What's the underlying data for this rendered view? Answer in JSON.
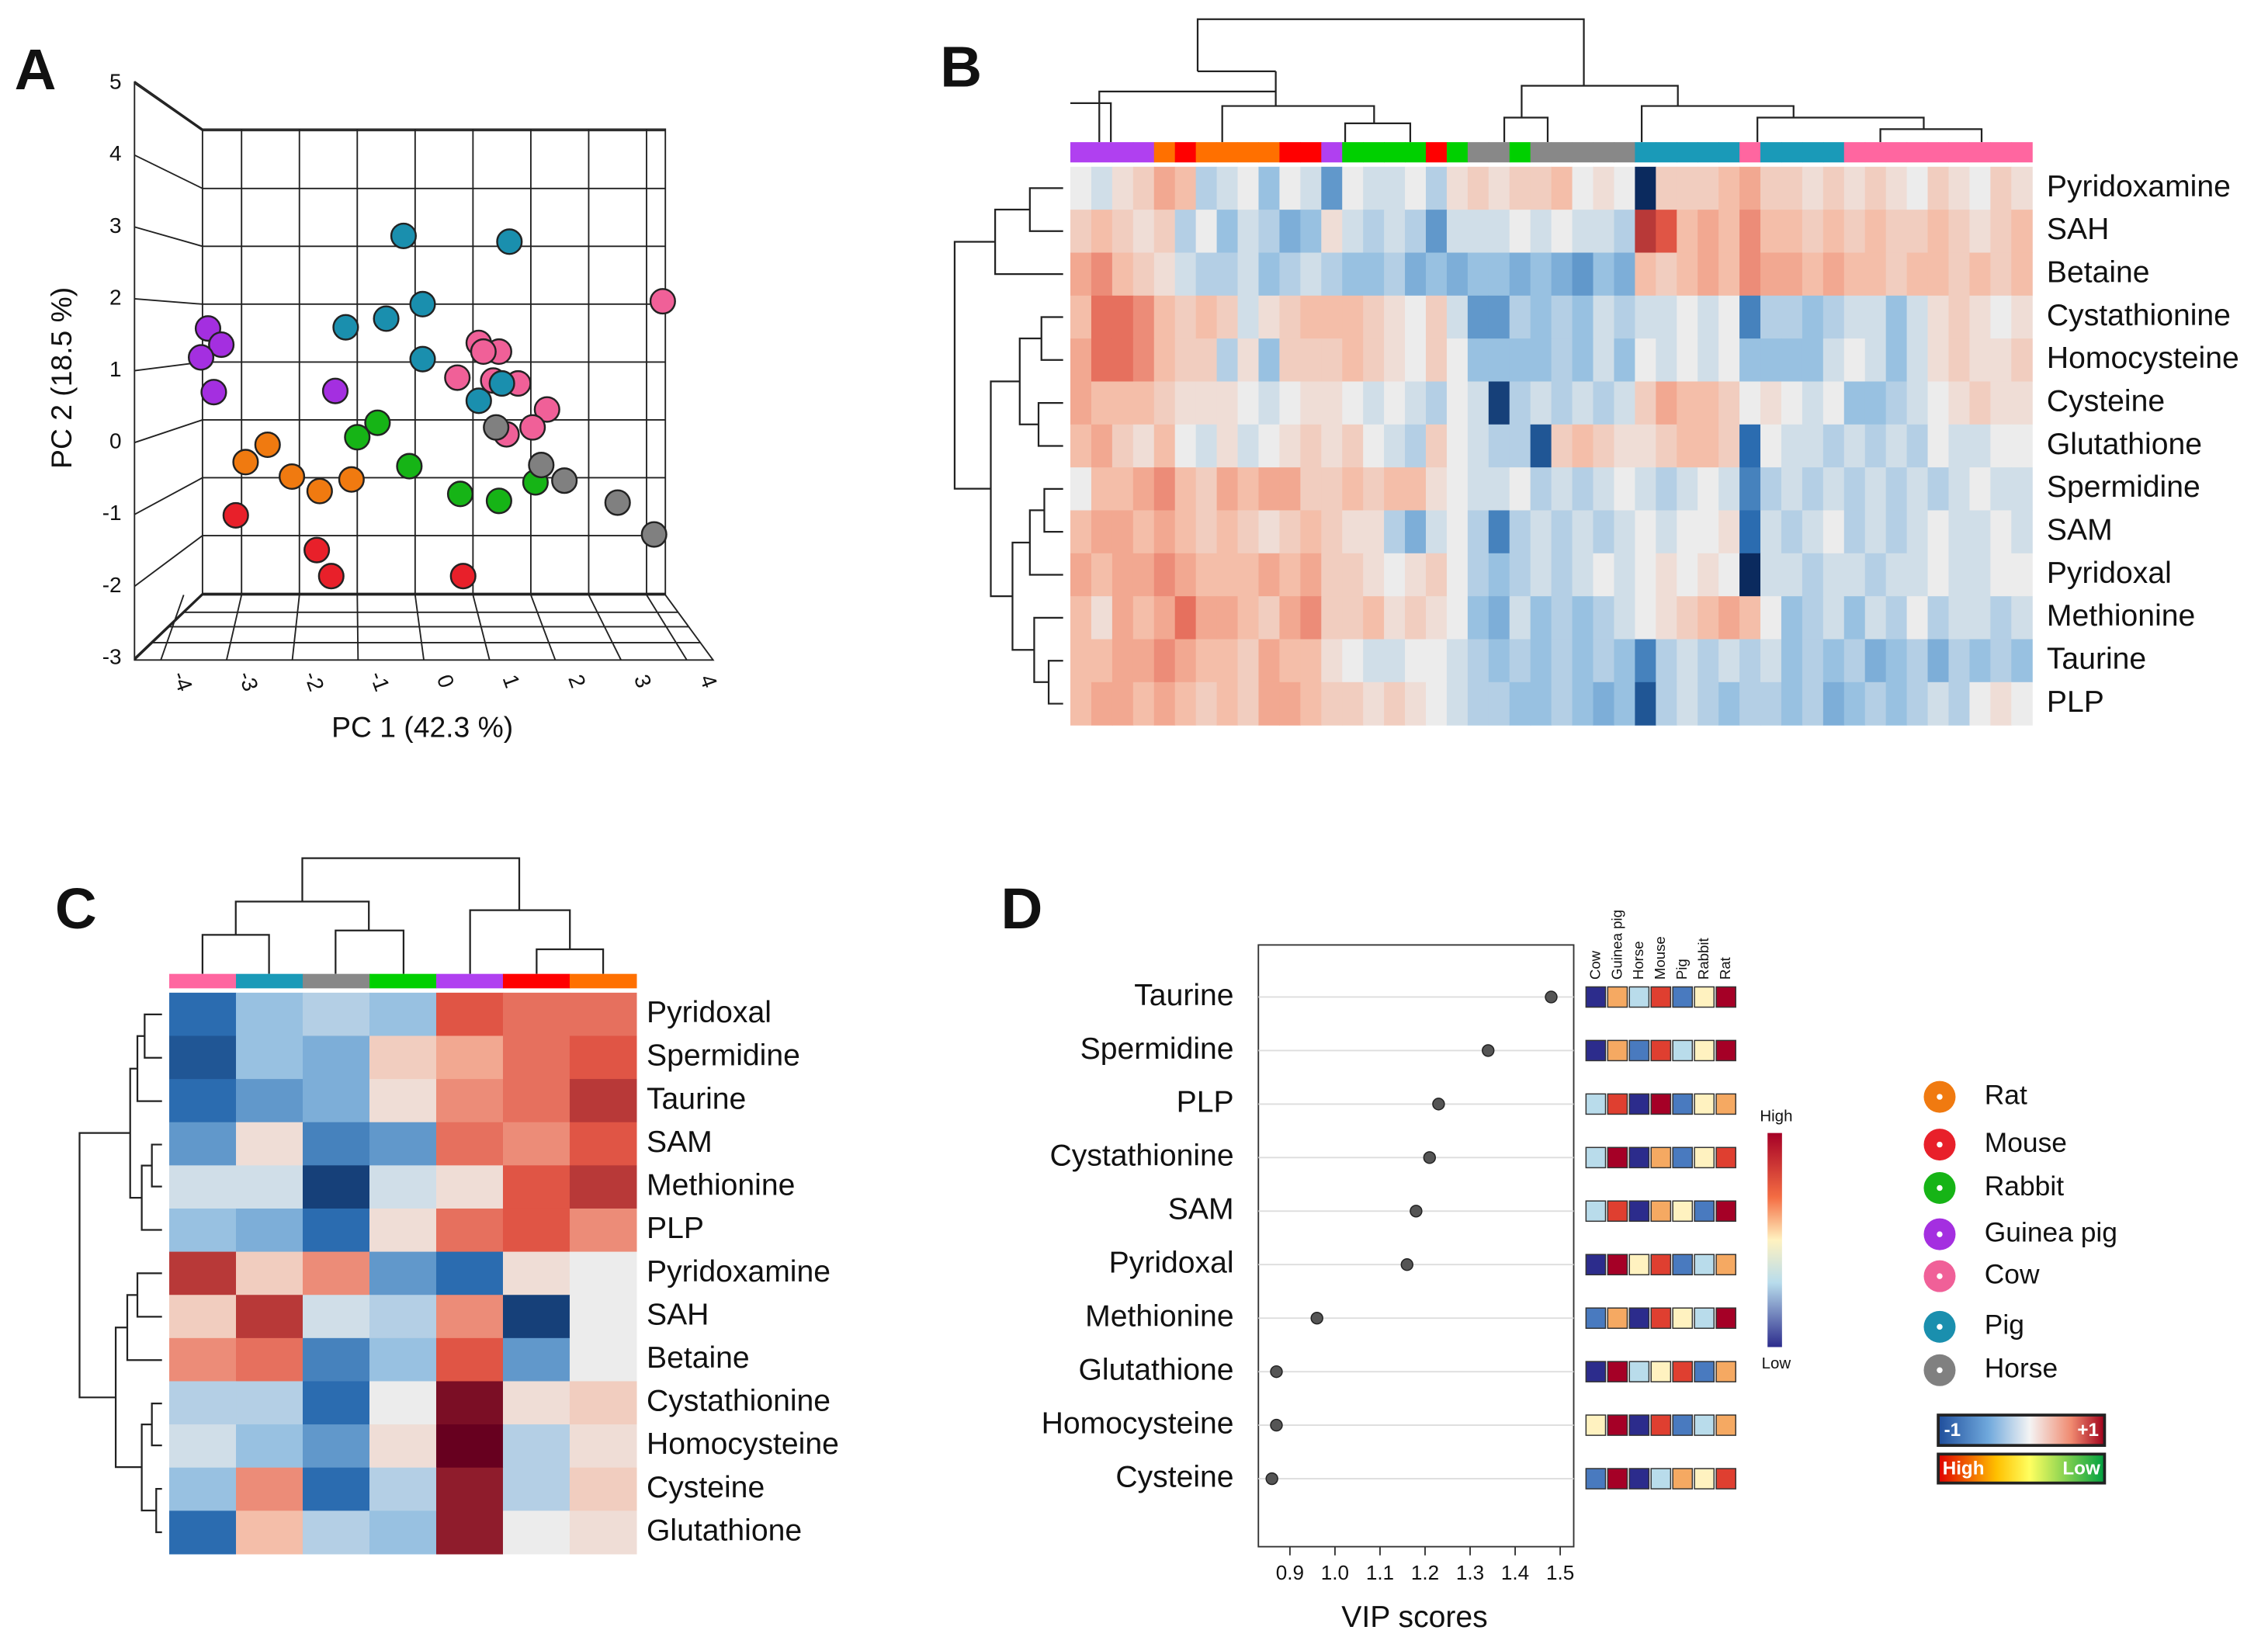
{
  "chart_data": [
    {
      "type": "scatter",
      "panel": "A",
      "xlabel": "PC 1 (42.3 %)",
      "ylabel": "PC 2 (18.5 %)",
      "xlim": [
        -4.4,
        4.4
      ],
      "ylim": [
        -3.2,
        5.2
      ],
      "xticks": [
        -4,
        -3,
        -2,
        -1,
        0,
        1,
        2,
        3,
        4
      ],
      "yticks": [
        -3,
        -2,
        -1,
        0,
        1,
        2,
        3,
        4,
        5
      ],
      "series": [
        {
          "name": "Rat",
          "color": "#f07a10",
          "x": [
            -2.55,
            -2.93,
            -2.13,
            -1.65,
            -1.1
          ],
          "values": [
            -0.43,
            -0.73,
            -0.98,
            -1.23,
            -1.03
          ]
        },
        {
          "name": "Mouse",
          "color": "#e8202a",
          "x": [
            -3.1,
            -1.7,
            -1.45,
            0.83
          ],
          "values": [
            -1.65,
            -2.25,
            -2.7,
            -2.7
          ]
        },
        {
          "name": "Rabbit",
          "color": "#16b416",
          "x": [
            -0.65,
            -1.0,
            -0.1,
            0.78,
            1.45,
            2.08
          ],
          "values": [
            -0.05,
            -0.3,
            -0.8,
            -1.28,
            -1.4,
            -1.08
          ]
        },
        {
          "name": "Guinea pig",
          "color": "#a42fe0",
          "x": [
            -3.58,
            -3.35,
            -3.7,
            -3.48,
            -1.38
          ],
          "values": [
            1.58,
            1.3,
            1.08,
            0.48,
            0.5
          ]
        },
        {
          "name": "Cow",
          "color": "#f06098",
          "x": [
            4.28,
            1.1,
            1.45,
            1.18,
            0.73,
            1.78,
            2.28,
            2.03,
            1.58,
            1.35
          ],
          "values": [
            2.05,
            1.33,
            1.18,
            1.18,
            0.73,
            0.63,
            0.18,
            -0.13,
            -0.25,
            0.68
          ]
        },
        {
          "name": "Pig",
          "color": "#1a8fae",
          "x": [
            -0.2,
            1.63,
            -0.5,
            -1.2,
            0.13,
            0.13,
            1.1,
            1.5
          ],
          "values": [
            3.18,
            3.08,
            1.75,
            1.6,
            2.0,
            1.05,
            0.33,
            0.63
          ]
        },
        {
          "name": "Horse",
          "color": "#808080",
          "x": [
            1.4,
            2.18,
            2.58,
            3.5,
            4.13
          ],
          "values": [
            -0.13,
            -0.78,
            -1.05,
            -1.43,
            -1.98
          ]
        }
      ]
    },
    {
      "type": "heatmap",
      "panel": "B",
      "rows": [
        "Pyridoxamine",
        "SAH",
        "Betaine",
        "Cystathionine",
        "Homocysteine",
        "Cysteine",
        "Glutathione",
        "Spermidine",
        "SAM",
        "Pyridoxal",
        "Methionine",
        "Taurine",
        "PLP"
      ],
      "column_colors": [
        "#b040f0",
        "#b040f0",
        "#b040f0",
        "#b040f0",
        "#ff7000",
        "#ff0000",
        "#ff7000",
        "#ff7000",
        "#ff7000",
        "#ff7000",
        "#ff0000",
        "#ff0000",
        "#b040f0",
        "#00d000",
        "#00d000",
        "#00d000",
        "#00d000",
        "#ff0000",
        "#00d000",
        "#888888",
        "#888888",
        "#00d000",
        "#888888",
        "#888888",
        "#888888",
        "#888888",
        "#888888",
        "#1a9ab8",
        "#1a9ab8",
        "#1a9ab8",
        "#1a9ab8",
        "#1a9ab8",
        "#ff66a0",
        "#1a9ab8",
        "#1a9ab8",
        "#1a9ab8",
        "#1a9ab8",
        "#ff66a0",
        "#ff66a0",
        "#ff66a0",
        "#ff66a0",
        "#ff66a0",
        "#ff66a0",
        "#ff66a0",
        "#ff66a0",
        "#ff66a0"
      ],
      "values": [
        [
          0,
          -0.1,
          0.1,
          0.2,
          0.4,
          0.3,
          -0.2,
          -0.1,
          0,
          -0.3,
          0,
          -0.1,
          -0.5,
          0,
          -0.1,
          -0.1,
          0,
          -0.2,
          0.1,
          0.2,
          0.1,
          0.2,
          0.2,
          0.3,
          0,
          0.1,
          0,
          -1,
          0.2,
          0.2,
          0.2,
          0.3,
          0.4,
          0.2,
          0.2,
          0.1,
          0.2,
          0.1,
          0.2,
          0.1,
          0,
          0.2,
          0.1,
          0,
          0.2,
          0.1
        ],
        [
          0.2,
          0.3,
          0.2,
          0.1,
          0.2,
          -0.2,
          0,
          -0.3,
          -0.1,
          -0.2,
          -0.4,
          -0.3,
          0.1,
          -0.1,
          -0.2,
          -0.1,
          -0.2,
          -0.5,
          -0.1,
          -0.1,
          -0.1,
          0,
          -0.1,
          0,
          -0.1,
          -0.1,
          -0.2,
          0.8,
          0.7,
          0.3,
          0.4,
          0.3,
          0.5,
          0.3,
          0.3,
          0.2,
          0.3,
          0.2,
          0.3,
          0.2,
          0.2,
          0.3,
          0.2,
          0.1,
          0.2,
          0.3
        ],
        [
          0.4,
          0.5,
          0.3,
          0.2,
          0.1,
          -0.1,
          -0.2,
          -0.2,
          -0.1,
          -0.3,
          -0.2,
          -0.1,
          -0.2,
          -0.3,
          -0.3,
          -0.2,
          -0.4,
          -0.3,
          -0.4,
          -0.3,
          -0.3,
          -0.4,
          -0.3,
          -0.4,
          -0.5,
          -0.3,
          -0.4,
          0.3,
          0.2,
          0.3,
          0.4,
          0.3,
          0.5,
          0.4,
          0.4,
          0.3,
          0.4,
          0.3,
          0.3,
          0.2,
          0.3,
          0.3,
          0.2,
          0.3,
          0.2,
          0.3
        ],
        [
          0.3,
          0.6,
          0.6,
          0.5,
          0.3,
          0.2,
          0.3,
          0.2,
          -0.1,
          0.1,
          0.2,
          0.3,
          0.3,
          0.3,
          0.2,
          0.1,
          0,
          0.2,
          -0.1,
          -0.5,
          -0.5,
          -0.2,
          -0.3,
          -0.2,
          -0.3,
          -0.1,
          -0.2,
          -0.1,
          -0.1,
          0,
          -0.1,
          0,
          -0.6,
          -0.2,
          -0.2,
          -0.3,
          -0.2,
          -0.1,
          -0.1,
          -0.3,
          -0.1,
          0.1,
          0.2,
          0.1,
          0,
          0.1
        ],
        [
          0.4,
          0.6,
          0.6,
          0.5,
          0.3,
          0.2,
          0.2,
          -0.2,
          0.1,
          -0.3,
          0.2,
          0.2,
          0.2,
          0.3,
          0.2,
          0.1,
          0,
          0.2,
          0,
          -0.3,
          -0.3,
          -0.3,
          -0.3,
          -0.2,
          -0.3,
          -0.1,
          -0.3,
          0,
          -0.1,
          0,
          -0.1,
          0,
          -0.3,
          -0.3,
          -0.3,
          -0.3,
          -0.1,
          0,
          -0.1,
          -0.3,
          -0.1,
          0.1,
          0.2,
          0.1,
          0.1,
          0.2
        ],
        [
          0.4,
          0.3,
          0.3,
          0.3,
          0.2,
          0.1,
          0.1,
          0.1,
          0,
          -0.1,
          0,
          0.1,
          0.1,
          0,
          -0.1,
          0,
          -0.1,
          -0.2,
          0,
          -0.1,
          -0.9,
          -0.2,
          -0.1,
          -0.2,
          -0.1,
          -0.2,
          -0.1,
          0.2,
          0.4,
          0.3,
          0.3,
          0.2,
          0,
          0.1,
          0,
          -0.1,
          0,
          -0.3,
          -0.3,
          -0.2,
          -0.1,
          0,
          0.1,
          0.2,
          0.1,
          0.1
        ],
        [
          0.3,
          0.4,
          0.2,
          0.1,
          0.3,
          0,
          -0.1,
          0.1,
          -0.1,
          0,
          0.1,
          0.2,
          0.1,
          0.2,
          0,
          -0.1,
          -0.2,
          0.2,
          0,
          -0.1,
          -0.2,
          -0.2,
          -0.8,
          0.2,
          0.3,
          0.2,
          0.1,
          0.1,
          0.2,
          0.3,
          0.3,
          0.2,
          -0.7,
          0,
          -0.1,
          -0.1,
          -0.2,
          -0.1,
          -0.2,
          -0.1,
          -0.2,
          0,
          -0.1,
          -0.1,
          0,
          0
        ],
        [
          0,
          0.3,
          0.3,
          0.4,
          0.5,
          0.3,
          0.2,
          0.4,
          0.3,
          0.4,
          0.4,
          0.2,
          0.2,
          0.3,
          0.2,
          0.3,
          0.3,
          0.1,
          0,
          -0.1,
          -0.1,
          0,
          -0.2,
          -0.1,
          -0.2,
          -0.1,
          0,
          -0.1,
          -0.2,
          -0.1,
          0,
          -0.1,
          -0.6,
          -0.2,
          -0.1,
          -0.2,
          -0.1,
          -0.2,
          -0.1,
          -0.2,
          -0.1,
          -0.2,
          -0.1,
          0,
          -0.1,
          -0.1
        ],
        [
          0.3,
          0.4,
          0.4,
          0.3,
          0.4,
          0.3,
          0.2,
          0.3,
          0.2,
          0.1,
          0.2,
          0.3,
          0.2,
          0.1,
          0.1,
          -0.2,
          -0.4,
          -0.1,
          0,
          -0.2,
          -0.6,
          -0.2,
          -0.1,
          -0.2,
          -0.1,
          -0.2,
          -0.1,
          0,
          -0.1,
          0,
          0,
          0.1,
          -0.7,
          -0.1,
          -0.2,
          -0.1,
          0,
          -0.2,
          -0.1,
          -0.2,
          -0.1,
          0,
          -0.1,
          -0.1,
          0,
          -0.1
        ],
        [
          0.4,
          0.3,
          0.4,
          0.4,
          0.5,
          0.4,
          0.3,
          0.3,
          0.3,
          0.4,
          0.3,
          0.4,
          0.2,
          0.2,
          0.1,
          0,
          0.1,
          0.2,
          0,
          -0.2,
          -0.3,
          -0.2,
          -0.1,
          -0.2,
          -0.1,
          0,
          -0.1,
          0,
          0.1,
          0,
          0.1,
          0,
          -1,
          -0.1,
          -0.1,
          -0.2,
          -0.1,
          -0.1,
          -0.2,
          -0.1,
          -0.1,
          0,
          -0.1,
          -0.1,
          0,
          0
        ],
        [
          0.3,
          0.1,
          0.4,
          0.3,
          0.4,
          0.6,
          0.4,
          0.4,
          0.3,
          0.2,
          0.4,
          0.5,
          0.2,
          0.2,
          0.3,
          0.1,
          0.2,
          0.1,
          0,
          -0.3,
          -0.4,
          -0.1,
          -0.3,
          -0.2,
          -0.3,
          -0.2,
          -0.1,
          0,
          0.1,
          0.2,
          0.3,
          0.4,
          0.3,
          0,
          -0.3,
          -0.2,
          -0.1,
          -0.3,
          -0.1,
          -0.2,
          0,
          -0.2,
          -0.1,
          -0.1,
          -0.2,
          -0.1
        ],
        [
          0.3,
          0.3,
          0.4,
          0.4,
          0.5,
          0.4,
          0.3,
          0.3,
          0.2,
          0.4,
          0.3,
          0.3,
          0.1,
          0,
          -0.1,
          -0.1,
          0,
          0,
          -0.1,
          -0.2,
          -0.3,
          -0.2,
          -0.3,
          -0.2,
          -0.3,
          -0.2,
          -0.3,
          -0.6,
          -0.2,
          -0.1,
          -0.2,
          -0.1,
          -0.2,
          -0.1,
          -0.3,
          -0.2,
          -0.3,
          -0.2,
          -0.4,
          -0.3,
          -0.2,
          -0.4,
          -0.2,
          -0.3,
          -0.2,
          -0.3
        ],
        [
          0.3,
          0.4,
          0.4,
          0.3,
          0.4,
          0.3,
          0.2,
          0.3,
          0.2,
          0.4,
          0.4,
          0.3,
          0.2,
          0.2,
          0.1,
          0.2,
          0.1,
          0,
          -0.1,
          -0.2,
          -0.2,
          -0.3,
          -0.3,
          -0.2,
          -0.3,
          -0.4,
          -0.3,
          -0.8,
          -0.2,
          -0.1,
          -0.2,
          -0.3,
          -0.2,
          -0.2,
          -0.3,
          -0.2,
          -0.4,
          -0.3,
          -0.2,
          -0.3,
          -0.2,
          -0.1,
          -0.2,
          0,
          0.1,
          0
        ]
      ]
    },
    {
      "type": "heatmap",
      "panel": "C",
      "rows": [
        "Pyridoxal",
        "Spermidine",
        "Taurine",
        "SAM",
        "Methionine",
        "PLP",
        "Pyridoxamine",
        "SAH",
        "Betaine",
        "Cystathionine",
        "Homocysteine",
        "Cysteine",
        "Glutathione"
      ],
      "column_colors": [
        "#ff66a0",
        "#1a9ab8",
        "#888888",
        "#00d000",
        "#b040f0",
        "#ff0000",
        "#ff7000"
      ],
      "values": [
        [
          -0.7,
          -0.3,
          -0.2,
          -0.3,
          0.7,
          0.6,
          0.6
        ],
        [
          -0.8,
          -0.3,
          -0.4,
          0.2,
          0.4,
          0.6,
          0.7
        ],
        [
          -0.7,
          -0.5,
          -0.4,
          0.1,
          0.5,
          0.6,
          0.8
        ],
        [
          -0.5,
          0.1,
          -0.6,
          -0.5,
          0.6,
          0.5,
          0.7
        ],
        [
          -0.1,
          -0.1,
          -0.9,
          -0.1,
          0.1,
          0.7,
          0.8
        ],
        [
          -0.3,
          -0.4,
          -0.7,
          0.1,
          0.6,
          0.7,
          0.5
        ],
        [
          0.8,
          0.2,
          0.5,
          -0.5,
          -0.7,
          0.1,
          0
        ],
        [
          0.2,
          0.8,
          -0.1,
          -0.2,
          0.5,
          -0.9,
          0
        ],
        [
          0.5,
          0.6,
          -0.6,
          -0.3,
          0.7,
          -0.5,
          0
        ],
        [
          -0.2,
          -0.2,
          -0.7,
          0,
          0.95,
          0.1,
          0.2
        ],
        [
          -0.1,
          -0.3,
          -0.5,
          0.1,
          1,
          -0.2,
          0.1
        ],
        [
          -0.3,
          0.5,
          -0.7,
          -0.2,
          0.9,
          -0.2,
          0.2
        ],
        [
          -0.7,
          0.3,
          -0.2,
          -0.3,
          0.9,
          0,
          0.1
        ]
      ]
    },
    {
      "type": "dot",
      "panel": "D",
      "xlabel": "VIP scores",
      "categories": [
        "Taurine",
        "Spermidine",
        "PLP",
        "Cystathionine",
        "SAM",
        "Pyridoxal",
        "Methionine",
        "Glutathione",
        "Homocysteine",
        "Cysteine"
      ],
      "values": [
        1.48,
        1.34,
        1.23,
        1.21,
        1.18,
        1.16,
        0.96,
        0.87,
        0.87,
        0.86
      ],
      "xlim": [
        0.83,
        1.53
      ],
      "xticks": [
        0.9,
        {
          "value": 1,
          "label": "1.0"
        },
        1.1,
        1.2,
        1.3,
        1.4,
        1.5
      ],
      "heatmap_columns": [
        "Cow",
        "Guinea pig",
        "Horse",
        "Mouse",
        "Pig",
        "Rabbit",
        "Rat"
      ],
      "heatmap_values": [
        [
          1,
          5,
          3,
          6,
          2,
          4,
          7
        ],
        [
          1,
          5,
          2,
          6,
          3,
          4,
          7
        ],
        [
          3,
          6,
          1,
          7,
          2,
          4,
          5
        ],
        [
          3,
          7,
          1,
          5,
          2,
          4,
          6
        ],
        [
          3,
          6,
          1,
          5,
          4,
          2,
          7
        ],
        [
          1,
          7,
          4,
          6,
          2,
          3,
          5
        ],
        [
          2,
          5,
          1,
          6,
          4,
          3,
          7
        ],
        [
          1,
          7,
          3,
          4,
          6,
          2,
          5
        ],
        [
          4,
          7,
          1,
          6,
          2,
          3,
          5
        ],
        [
          2,
          7,
          1,
          3,
          5,
          4,
          6
        ]
      ],
      "cell_lim": [
        1,
        7
      ],
      "colorbar_labels": [
        "High",
        "Low"
      ]
    }
  ],
  "legend": {
    "scale_ticks": [
      -1,
      {
        "value": 1,
        "label": "+1"
      }
    ],
    "rank_labels": [
      "High",
      "Low"
    ]
  }
}
